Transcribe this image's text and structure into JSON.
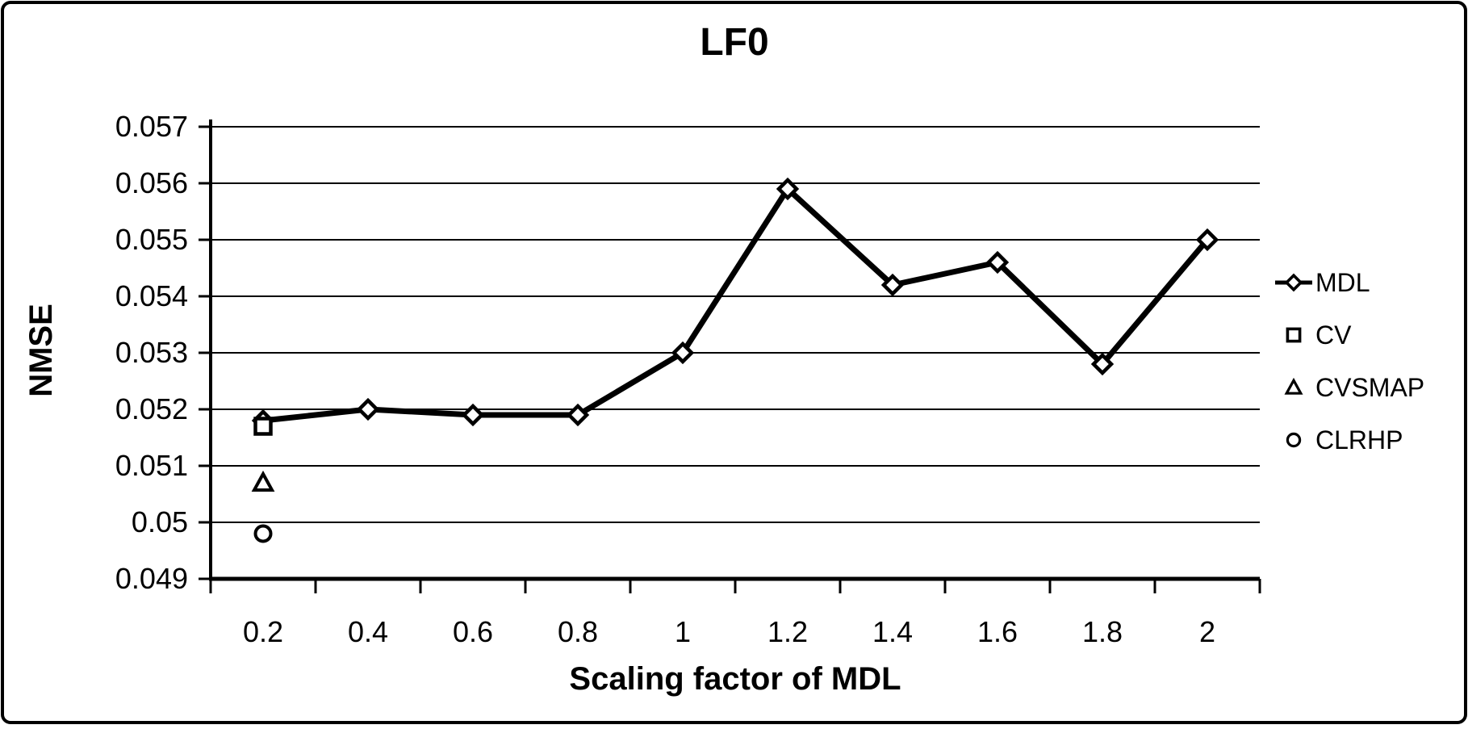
{
  "chart_data": {
    "type": "line",
    "title": "LF0",
    "xlabel": "Scaling factor of MDL",
    "ylabel": "NMSE",
    "categories": [
      "0.2",
      "0.4",
      "0.6",
      "0.8",
      "1",
      "1.2",
      "1.4",
      "1.6",
      "1.8",
      "2"
    ],
    "x_values": [
      0.2,
      0.4,
      0.6,
      0.8,
      1,
      1.2,
      1.4,
      1.6,
      1.8,
      2
    ],
    "ylim": [
      0.049,
      0.057
    ],
    "ytick_step": 0.001,
    "ytick_labels": [
      "0.057",
      "0.056",
      "0.055",
      "0.054",
      "0.053",
      "0.052",
      "0.051",
      "0.05",
      "0.049"
    ],
    "grid": true,
    "legend_position": "right",
    "series": [
      {
        "name": "MDL",
        "marker": "diamond",
        "line": true,
        "values": [
          0.0518,
          0.052,
          0.0519,
          0.0519,
          0.053,
          0.0559,
          0.0542,
          0.0546,
          0.0528,
          0.055
        ]
      },
      {
        "name": "CV",
        "marker": "square",
        "line": false,
        "values": [
          0.0517,
          null,
          null,
          null,
          null,
          null,
          null,
          null,
          null,
          null
        ]
      },
      {
        "name": "CVSMAP",
        "marker": "triangle",
        "line": false,
        "values": [
          0.0507,
          null,
          null,
          null,
          null,
          null,
          null,
          null,
          null,
          null
        ]
      },
      {
        "name": "CLRHP",
        "marker": "circle",
        "line": false,
        "values": [
          0.0498,
          null,
          null,
          null,
          null,
          null,
          null,
          null,
          null,
          null
        ]
      }
    ],
    "colors": {
      "foreground": "#000000",
      "background": "#ffffff"
    }
  }
}
